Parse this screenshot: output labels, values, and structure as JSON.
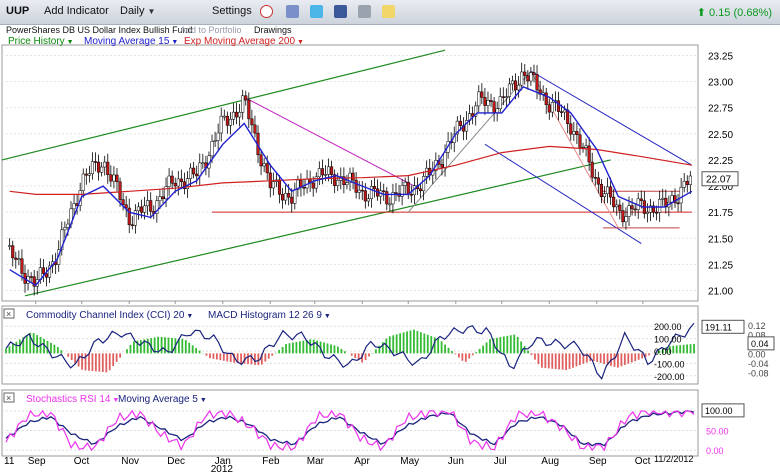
{
  "toolbar": {
    "symbol": "UUP",
    "add_indicator": "Add Indicator",
    "interval": "Daily",
    "settings": "Settings",
    "change_text": "0.15 (0.68%)",
    "icons": [
      "alarm-icon",
      "note-icon",
      "twitter-icon",
      "facebook-icon",
      "print-icon",
      "chat-icon"
    ]
  },
  "subbar": {
    "company": "PowerShares DB US Dollar Index Bullish Fund",
    "add_portfolio": "Add to Portfolio",
    "drawings": "Drawings"
  },
  "main_legend": {
    "price": "Price History",
    "ma": "Moving Average 15",
    "ema": "Exp Moving Average 200"
  },
  "cci_legend": {
    "cci": "Commodity Channel Index (CCI) 20",
    "macd": "MACD Histogram 12 26 9"
  },
  "stoch_legend": {
    "stoch": "Stochastics RSI 14",
    "ma": "Moving Average 5"
  },
  "date_marker": "11/2/2012",
  "colors": {
    "price": "#000000",
    "ma15": "#2020d0",
    "ema200": "#d02020",
    "cci": "#1a237e",
    "macd_pos": "#33bb33",
    "macd_neg": "#e06060",
    "stoch": "#ee33ee",
    "stoch_ma": "#1a237e"
  },
  "chart_data": [
    {
      "type": "line",
      "price_type": "candlestick",
      "series": [
        {
          "name": "Price History",
          "x": [
            "2011-08-15",
            "2011-09-01",
            "2011-09-15",
            "2011-10-01",
            "2011-10-15",
            "2011-11-01",
            "2011-11-15",
            "2011-12-01",
            "2011-12-15",
            "2012-01-01",
            "2012-01-15",
            "2012-02-01",
            "2012-02-15",
            "2012-03-01",
            "2012-03-15",
            "2012-04-01",
            "2012-04-15",
            "2012-05-01",
            "2012-05-15",
            "2012-06-01",
            "2012-06-15",
            "2012-07-01",
            "2012-07-15",
            "2012-08-01",
            "2012-08-15",
            "2012-09-01",
            "2012-09-15",
            "2012-10-01",
            "2012-10-15",
            "2012-11-02"
          ],
          "y": [
            21.35,
            21.05,
            21.35,
            22.05,
            22.25,
            21.7,
            21.8,
            22.05,
            22.1,
            22.6,
            22.8,
            22.0,
            21.9,
            22.1,
            22.1,
            21.95,
            21.9,
            21.95,
            22.1,
            22.5,
            22.8,
            22.8,
            23.1,
            22.8,
            22.6,
            22.05,
            21.75,
            21.8,
            21.8,
            22.07
          ]
        },
        {
          "name": "Moving Average 15",
          "x": [
            "2011-08-15",
            "2011-09-01",
            "2011-09-15",
            "2011-10-01",
            "2011-10-15",
            "2011-11-01",
            "2011-11-15",
            "2011-12-01",
            "2011-12-15",
            "2012-01-01",
            "2012-01-15",
            "2012-02-01",
            "2012-02-15",
            "2012-03-01",
            "2012-03-15",
            "2012-04-01",
            "2012-04-15",
            "2012-05-01",
            "2012-05-15",
            "2012-06-01",
            "2012-06-15",
            "2012-07-01",
            "2012-07-15",
            "2012-08-01",
            "2012-08-15",
            "2012-09-01",
            "2012-09-15",
            "2012-10-01",
            "2012-10-15",
            "2012-11-02"
          ],
          "y": [
            21.2,
            21.05,
            21.3,
            21.9,
            22.0,
            21.75,
            21.7,
            21.95,
            22.05,
            22.4,
            22.6,
            22.2,
            21.95,
            22.05,
            22.1,
            22.0,
            21.92,
            21.92,
            22.1,
            22.5,
            22.7,
            22.7,
            22.95,
            22.85,
            22.7,
            22.35,
            21.9,
            21.8,
            21.8,
            21.95
          ]
        },
        {
          "name": "Exp Moving Average 200",
          "x": [
            "2011-08-15",
            "2011-09-01",
            "2011-10-01",
            "2011-11-01",
            "2011-12-01",
            "2012-01-01",
            "2012-02-01",
            "2012-03-01",
            "2012-04-01",
            "2012-05-01",
            "2012-06-01",
            "2012-07-01",
            "2012-08-01",
            "2012-09-01",
            "2012-10-01",
            "2012-11-02"
          ],
          "y": [
            21.95,
            21.92,
            21.92,
            21.95,
            21.98,
            22.03,
            22.05,
            22.07,
            22.08,
            22.1,
            22.2,
            22.32,
            22.38,
            22.35,
            22.28,
            22.2
          ]
        }
      ],
      "ylim": [
        20.9,
        23.35
      ],
      "yticks": [
        "23.25",
        "23.00",
        "22.75",
        "22.50",
        "22.25",
        "22.00",
        "21.75",
        "21.50",
        "21.25",
        "21.00"
      ],
      "last_price_label": "22.07"
    },
    {
      "type": "line",
      "series": [
        {
          "name": "Commodity Channel Index (CCI) 20",
          "y": [
            20,
            110,
            -20,
            -120,
            80,
            150,
            60,
            -20,
            160,
            110,
            -80,
            -60,
            130,
            120,
            -40,
            -120,
            70,
            -10,
            -110,
            120,
            180,
            160,
            -140,
            90,
            60,
            40,
            -210,
            120,
            -90,
            80,
            191.11
          ]
        },
        {
          "name": "MACD Histogram 12 26 9",
          "y": [
            0.02,
            0.09,
            0.03,
            -0.07,
            -0.08,
            0.05,
            0.07,
            0.06,
            -0.02,
            -0.04,
            -0.05,
            0.04,
            0.06,
            0.03,
            -0.04,
            0.07,
            0.1,
            0.06,
            -0.04,
            0.06,
            0.08,
            -0.06,
            -0.07,
            -0.03,
            -0.06,
            -0.02,
            0.03,
            0.04
          ]
        }
      ],
      "yticks_left": [
        "200.00",
        "100.00",
        "0.00",
        "-100.00",
        "-200.00"
      ],
      "yticks_right": [
        "0.12",
        "0.08",
        "0.04",
        "0.00",
        "-0.04",
        "-0.08"
      ],
      "last_cci_label": "191.11",
      "last_macd_label": "0.04"
    },
    {
      "type": "line",
      "series": [
        {
          "name": "Stochastics RSI 14",
          "y": [
            20,
            90,
            95,
            10,
            5,
            80,
            95,
            40,
            10,
            90,
            95,
            60,
            10,
            5,
            85,
            95,
            30,
            5,
            80,
            95,
            100,
            20,
            5,
            90,
            95,
            60,
            5,
            10,
            85,
            100,
            95,
            100
          ]
        },
        {
          "name": "Moving Average 5",
          "y": [
            30,
            70,
            85,
            40,
            15,
            60,
            85,
            55,
            25,
            70,
            85,
            65,
            25,
            15,
            65,
            85,
            45,
            15,
            60,
            85,
            95,
            40,
            15,
            70,
            85,
            65,
            15,
            15,
            70,
            90,
            95,
            100
          ]
        }
      ],
      "yticks": [
        "100.00",
        "50.00",
        "0.00"
      ],
      "last_label": "100.00"
    }
  ],
  "x_axis": {
    "labels": [
      "Sep",
      "Oct",
      "Nov",
      "Dec",
      "Jan",
      "Feb",
      "Mar",
      "Apr",
      "May",
      "Jun",
      "Jul",
      "Aug",
      "Sep",
      "Oct"
    ],
    "year_label": "2012",
    "edge_label": "11"
  }
}
